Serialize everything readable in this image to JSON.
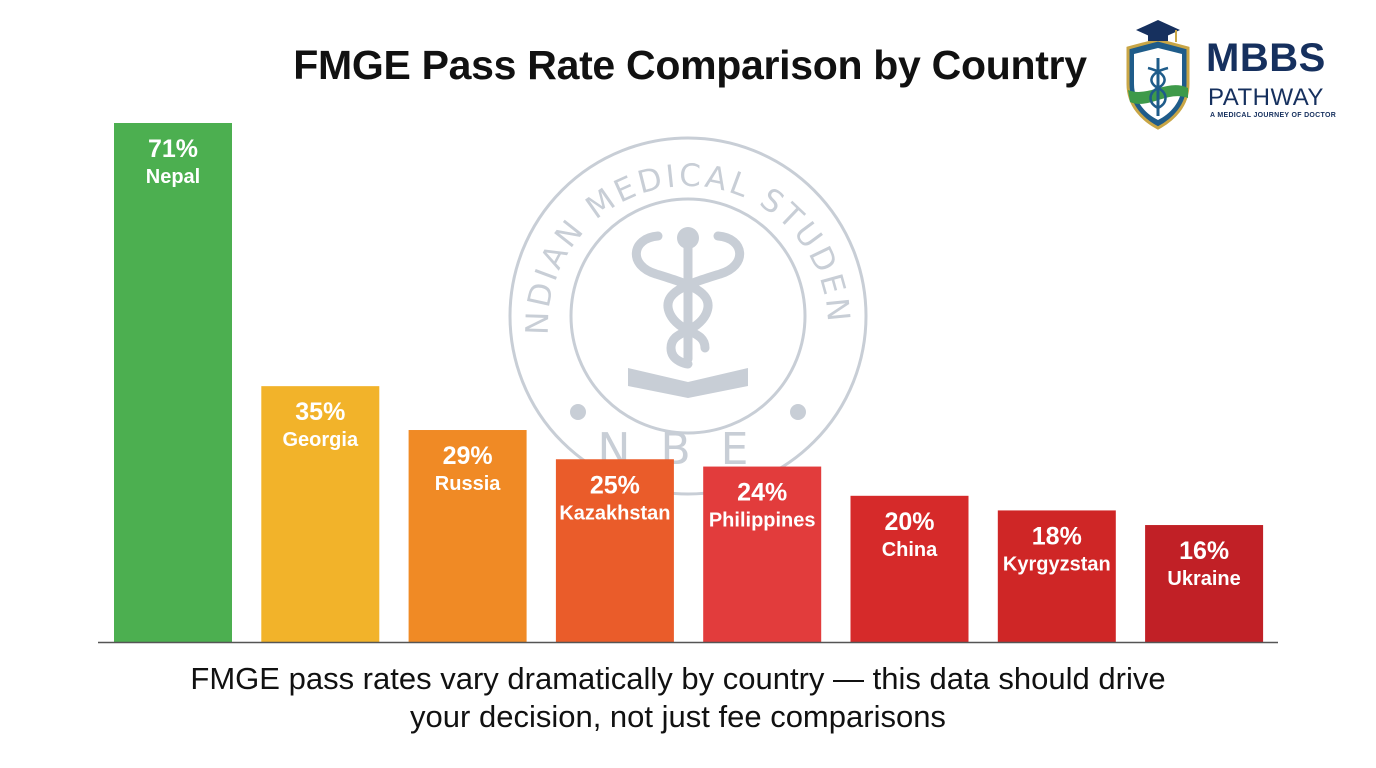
{
  "chart_data": {
    "type": "bar",
    "title": "FMGE Pass Rate Comparison by Country",
    "categories": [
      "Nepal",
      "Georgia",
      "Russia",
      "Kazakhstan",
      "Philippines",
      "China",
      "Kyrgyzstan",
      "Ukraine"
    ],
    "values": [
      71,
      35,
      29,
      25,
      24,
      20,
      18,
      16
    ],
    "value_labels": [
      "71%",
      "35%",
      "29%",
      "25%",
      "24%",
      "20%",
      "18%",
      "16%"
    ],
    "colors": [
      "#4caf50",
      "#f2b32a",
      "#f08a25",
      "#ea5c2a",
      "#e23c3c",
      "#d62a2a",
      "#cf2626",
      "#c12026"
    ],
    "ylim": [
      0,
      71
    ],
    "grid": false,
    "legend": "none",
    "xlabel": "",
    "ylabel": ""
  },
  "caption": {
    "line1": "FMGE pass rates vary dramatically by country — this data should drive",
    "line2": "your decision, not just fee comparisons"
  },
  "logo": {
    "line1": "MBBS",
    "line2": "PATHWAY",
    "tagline": "A MEDICAL JOURNEY OF DOCTOR",
    "icon": "caduceus-shield-icon",
    "color": "#16305e"
  },
  "watermark": {
    "top_text": "INDIAN MEDICAL STUDENT",
    "bottom_text": "NBE",
    "icon": "caduceus-book-seal-icon"
  }
}
